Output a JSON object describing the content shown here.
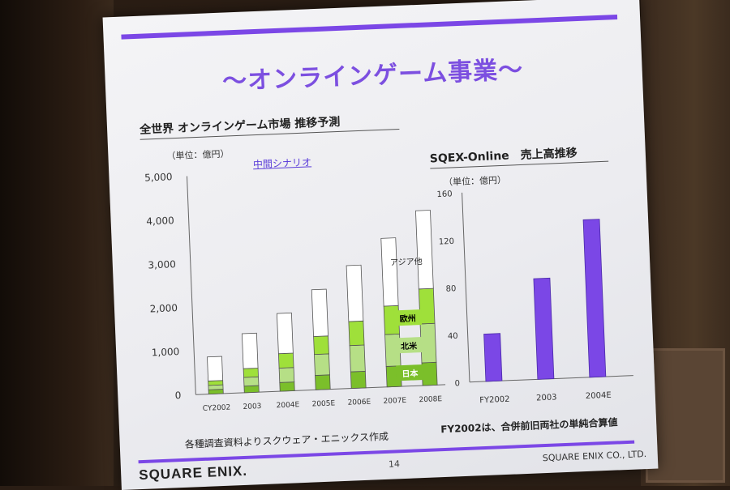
{
  "slide": {
    "title": "～オンラインゲーム事業～",
    "logo": "SQUARE ENIX.",
    "page_number": "14",
    "company": "SQUARE ENIX CO., LTD.",
    "accent_color": "#7b47e6"
  },
  "left_chart": {
    "title": "全世界 オンラインゲーム市場 推移予測",
    "unit": "（単位：億円）",
    "scenario": "中間シナリオ",
    "source_note": "各種調査資料よりスクウェア・エニックス作成"
  },
  "right_chart": {
    "title": "SQEX-Online　売上高推移",
    "unit": "（単位：億円）",
    "note": "FY2002は、合併前旧両社の単純合算値"
  },
  "chart_data": [
    {
      "type": "bar",
      "stacked": true,
      "title": "全世界 オンラインゲーム市場 推移予測",
      "categories": [
        "CY2002",
        "2003",
        "2004E",
        "2005E",
        "2006E",
        "2007E",
        "2008E"
      ],
      "series": [
        {
          "name": "日本",
          "color": "#7bbf2a",
          "values": [
            100,
            150,
            200,
            330,
            380,
            470,
            520
          ]
        },
        {
          "name": "北米",
          "color": "#b6df86",
          "values": [
            100,
            200,
            330,
            480,
            600,
            730,
            890
          ]
        },
        {
          "name": "欧州",
          "color": "#9fe03a",
          "values": [
            100,
            200,
            330,
            410,
            550,
            650,
            800
          ]
        },
        {
          "name": "アジア他",
          "color": "#ffffff",
          "values": [
            550,
            800,
            920,
            1070,
            1280,
            1550,
            1790
          ]
        }
      ],
      "yticks": [
        "5,000",
        "4,000",
        "3,000",
        "2,000",
        "1,000",
        "0"
      ],
      "ylim": [
        0,
        5000
      ],
      "grid": false,
      "legend": "right"
    },
    {
      "type": "bar",
      "title": "SQEX-Online　売上高推移",
      "categories": [
        "FY2002",
        "2003",
        "2004E"
      ],
      "values": [
        40,
        85,
        133
      ],
      "color": "#7b47e6",
      "yticks": [
        "160",
        "120",
        "80",
        "40",
        "0"
      ],
      "ylim": [
        0,
        160
      ],
      "grid": false
    }
  ]
}
